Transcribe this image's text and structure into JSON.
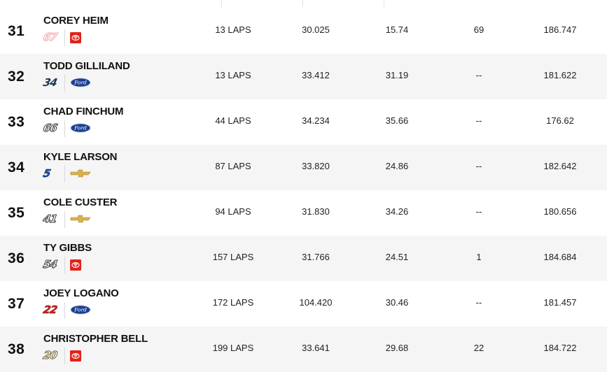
{
  "rows": [
    {
      "pos": "31",
      "driver": "COREY HEIM",
      "car_number": "67",
      "num_style": "ghost-red",
      "manufacturer": "toyota-icon",
      "laps": "13 LAPS",
      "best_time": "30.025",
      "avg_pos": "15.74",
      "laps_led": "69",
      "speed": "186.747"
    },
    {
      "pos": "32",
      "driver": "TODD GILLILAND",
      "car_number": "34",
      "num_style": "navy",
      "manufacturer": "ford-icon",
      "laps": "13 LAPS",
      "best_time": "33.412",
      "avg_pos": "31.19",
      "laps_led": "--",
      "speed": "181.622"
    },
    {
      "pos": "33",
      "driver": "CHAD FINCHUM",
      "car_number": "66",
      "num_style": "outline-dark",
      "manufacturer": "ford-icon",
      "laps": "44 LAPS",
      "best_time": "34.234",
      "avg_pos": "35.66",
      "laps_led": "--",
      "speed": "176.62"
    },
    {
      "pos": "34",
      "driver": "KYLE LARSON",
      "car_number": "5",
      "num_style": "blue",
      "manufacturer": "chevrolet-icon",
      "laps": "87 LAPS",
      "best_time": "33.820",
      "avg_pos": "24.86",
      "laps_led": "--",
      "speed": "182.642"
    },
    {
      "pos": "35",
      "driver": "COLE CUSTER",
      "car_number": "41",
      "num_style": "outline-dark",
      "manufacturer": "chevrolet-icon",
      "laps": "94 LAPS",
      "best_time": "31.830",
      "avg_pos": "34.26",
      "laps_led": "--",
      "speed": "180.656"
    },
    {
      "pos": "36",
      "driver": "TY GIBBS",
      "car_number": "54",
      "num_style": "outline-dark",
      "manufacturer": "toyota-icon",
      "laps": "157 LAPS",
      "best_time": "31.766",
      "avg_pos": "24.51",
      "laps_led": "1",
      "speed": "184.684"
    },
    {
      "pos": "37",
      "driver": "JOEY LOGANO",
      "car_number": "22",
      "num_style": "red",
      "manufacturer": "ford-icon",
      "laps": "172 LAPS",
      "best_time": "104.420",
      "avg_pos": "30.46",
      "laps_led": "--",
      "speed": "181.457"
    },
    {
      "pos": "38",
      "driver": "CHRISTOPHER BELL",
      "car_number": "20",
      "num_style": "outline-gold",
      "manufacturer": "toyota-icon",
      "laps": "199 LAPS",
      "best_time": "33.641",
      "avg_pos": "29.68",
      "laps_led": "22",
      "speed": "184.722"
    }
  ],
  "colors": {
    "row_shaded": "#f5f5f5",
    "row_plain": "#ffffff",
    "text": "#111111",
    "toyota_red": "#e2231a",
    "ford_blue": "#1b3f8f",
    "chevy_gold": "#d9b24a"
  }
}
